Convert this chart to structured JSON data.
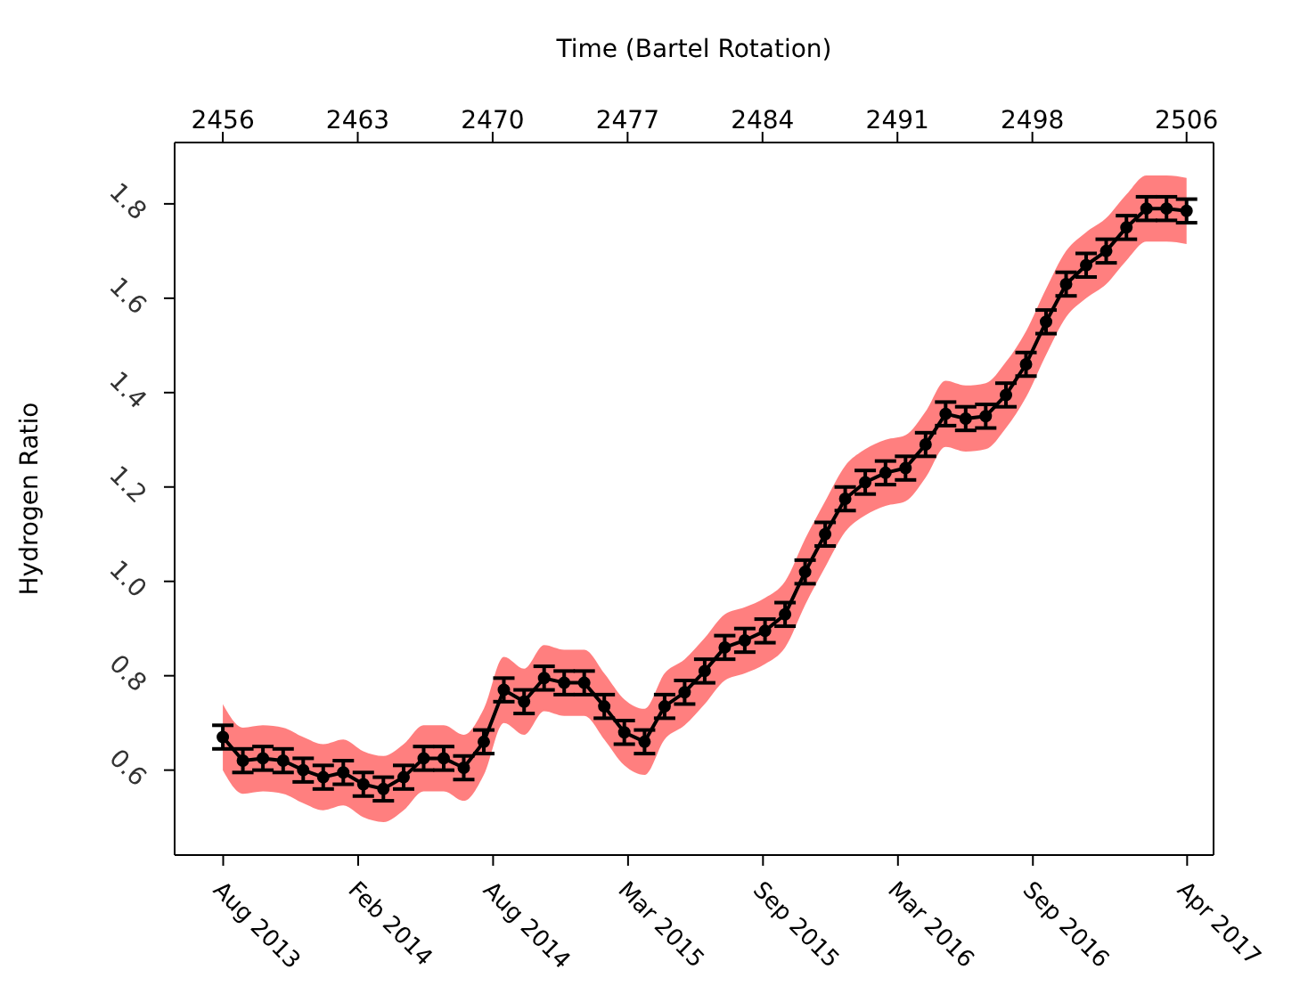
{
  "chart_data": {
    "type": "line",
    "xlabel": "Time (Bartel Rotation)",
    "ylabel": "Hydrogen Ratio",
    "x": [
      2456,
      2457.04,
      2458.08,
      2459.13,
      2460.17,
      2461.21,
      2462.25,
      2463.29,
      2464.33,
      2465.38,
      2466.42,
      2467.46,
      2468.5,
      2469.54,
      2470.58,
      2471.63,
      2472.67,
      2473.71,
      2474.75,
      2475.79,
      2476.83,
      2477.88,
      2478.92,
      2479.96,
      2481,
      2482.04,
      2483.08,
      2484.13,
      2485.17,
      2486.21,
      2487.25,
      2488.29,
      2489.33,
      2490.38,
      2491.42,
      2492.46,
      2493.5,
      2494.54,
      2495.58,
      2496.63,
      2497.67,
      2498.71,
      2499.75,
      2500.79,
      2501.83,
      2502.88,
      2503.92,
      2504.96,
      2506
    ],
    "series": [
      {
        "color": "#000000",
        "marker": "circle",
        "values": [
          0.67,
          0.62,
          0.625,
          0.62,
          0.6,
          0.585,
          0.595,
          0.57,
          0.56,
          0.585,
          0.625,
          0.625,
          0.605,
          0.66,
          0.77,
          0.745,
          0.795,
          0.785,
          0.785,
          0.735,
          0.68,
          0.66,
          0.735,
          0.765,
          0.81,
          0.86,
          0.875,
          0.895,
          0.93,
          1.02,
          1.1,
          1.175,
          1.21,
          1.23,
          1.24,
          1.29,
          1.355,
          1.345,
          1.35,
          1.395,
          1.46,
          1.55,
          1.63,
          1.67,
          1.7,
          1.75,
          1.79,
          1.79,
          1.785
        ],
        "errors": [
          0.025,
          0.025,
          0.025,
          0.025,
          0.025,
          0.025,
          0.025,
          0.025,
          0.025,
          0.025,
          0.025,
          0.025,
          0.025,
          0.025,
          0.025,
          0.025,
          0.025,
          0.025,
          0.025,
          0.025,
          0.025,
          0.025,
          0.025,
          0.025,
          0.025,
          0.025,
          0.025,
          0.025,
          0.025,
          0.025,
          0.025,
          0.025,
          0.025,
          0.025,
          0.025,
          0.025,
          0.025,
          0.025,
          0.025,
          0.025,
          0.025,
          0.025,
          0.025,
          0.025,
          0.025,
          0.025,
          0.025,
          0.025,
          0.025
        ],
        "lower": [
          0.6,
          0.55,
          0.555,
          0.55,
          0.53,
          0.515,
          0.525,
          0.5,
          0.49,
          0.515,
          0.555,
          0.555,
          0.535,
          0.59,
          0.7,
          0.675,
          0.725,
          0.715,
          0.715,
          0.665,
          0.61,
          0.59,
          0.665,
          0.695,
          0.74,
          0.79,
          0.805,
          0.825,
          0.86,
          0.95,
          1.03,
          1.105,
          1.14,
          1.16,
          1.17,
          1.22,
          1.285,
          1.275,
          1.28,
          1.325,
          1.39,
          1.48,
          1.56,
          1.6,
          1.63,
          1.68,
          1.72,
          1.72,
          1.715
        ],
        "upper": [
          0.74,
          0.69,
          0.695,
          0.69,
          0.67,
          0.655,
          0.665,
          0.64,
          0.63,
          0.655,
          0.695,
          0.695,
          0.675,
          0.73,
          0.84,
          0.815,
          0.865,
          0.855,
          0.855,
          0.805,
          0.75,
          0.73,
          0.805,
          0.835,
          0.88,
          0.93,
          0.945,
          0.965,
          1.0,
          1.09,
          1.17,
          1.245,
          1.28,
          1.3,
          1.31,
          1.36,
          1.425,
          1.415,
          1.42,
          1.465,
          1.53,
          1.62,
          1.7,
          1.74,
          1.77,
          1.82,
          1.86,
          1.86,
          1.855
        ]
      }
    ],
    "xlim": [
      2453.5,
      2507.4
    ],
    "xticks": [
      2456,
      2463,
      2470,
      2477,
      2484,
      2491,
      2498,
      2506
    ],
    "x2lim": [
      "2013-06-09",
      "2017-06-03"
    ],
    "x2ticks": [
      {
        "value": "2013-08-16",
        "label": "Aug 2013"
      },
      {
        "value": "2014-02-21",
        "label": "Feb 2014"
      },
      {
        "value": "2014-08-29",
        "label": "Aug 2014"
      },
      {
        "value": "2015-03-06",
        "label": "Mar 2015"
      },
      {
        "value": "2015-09-11",
        "label": "Sep 2015"
      },
      {
        "value": "2016-03-18",
        "label": "Mar 2016"
      },
      {
        "value": "2016-09-23",
        "label": "Sep 2016"
      },
      {
        "value": "2017-04-27",
        "label": "Apr 2017"
      }
    ],
    "ylim": [
      0.42,
      1.93
    ],
    "yticks": [
      0.6,
      0.8,
      {
        "value": 1,
        "label": "1.0"
      },
      1.2,
      1.4,
      1.6,
      1.8
    ],
    "grid": false,
    "legend": false
  }
}
